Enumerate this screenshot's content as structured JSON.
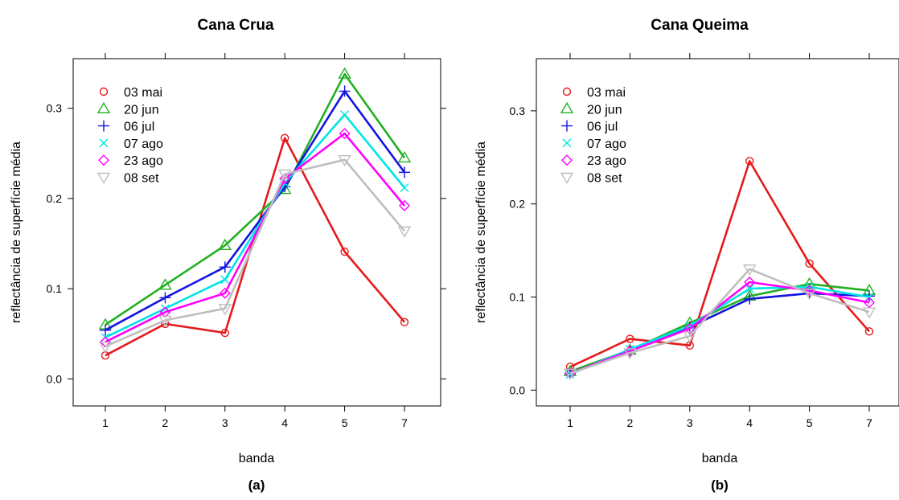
{
  "chart_data": [
    {
      "type": "line",
      "title": "Cana Crua",
      "caption": "(a)",
      "xlabel": "banda",
      "ylabel": "reflectância de superfície média",
      "categories": [
        "1",
        "2",
        "3",
        "4",
        "5",
        "7"
      ],
      "ylim": [
        -0.03,
        0.355
      ],
      "yticks": [
        "0.0",
        "0.1",
        "0.2",
        "0.3"
      ],
      "legend_position": "top-left",
      "series": [
        {
          "name": "03 mai",
          "color": "#e41a1c",
          "marker": "circle",
          "values": [
            0.026,
            0.061,
            0.051,
            0.267,
            0.141,
            0.063
          ]
        },
        {
          "name": "20 jun",
          "color": "#22b022",
          "marker": "triangle",
          "values": [
            0.06,
            0.104,
            0.148,
            0.21,
            0.338,
            0.245
          ]
        },
        {
          "name": "06 jul",
          "color": "#1414e0",
          "marker": "plus",
          "values": [
            0.054,
            0.09,
            0.124,
            0.213,
            0.319,
            0.229
          ]
        },
        {
          "name": "07 ago",
          "color": "#00e5e5",
          "marker": "cross",
          "values": [
            0.046,
            0.078,
            0.11,
            0.217,
            0.293,
            0.212
          ]
        },
        {
          "name": "23 ago",
          "color": "#ff00ff",
          "marker": "diamond",
          "values": [
            0.041,
            0.074,
            0.095,
            0.222,
            0.272,
            0.192
          ]
        },
        {
          "name": "08 set",
          "color": "#bebebe",
          "marker": "invtriangle",
          "values": [
            0.036,
            0.065,
            0.078,
            0.227,
            0.243,
            0.164
          ]
        }
      ]
    },
    {
      "type": "line",
      "title": "Cana Queima",
      "caption": "(b)",
      "xlabel": "banda",
      "ylabel": "reflectância de superfície média",
      "categories": [
        "1",
        "2",
        "3",
        "4",
        "5",
        "7"
      ],
      "ylim": [
        -0.017,
        0.356
      ],
      "yticks": [
        "0.0",
        "0.1",
        "0.2",
        "0.3"
      ],
      "legend_position": "top-left",
      "series": [
        {
          "name": "03 mai",
          "color": "#e41a1c",
          "marker": "circle",
          "values": [
            0.025,
            0.055,
            0.048,
            0.246,
            0.136,
            0.063
          ]
        },
        {
          "name": "20 jun",
          "color": "#22b022",
          "marker": "triangle",
          "values": [
            0.02,
            0.043,
            0.072,
            0.101,
            0.114,
            0.107
          ]
        },
        {
          "name": "06 jul",
          "color": "#1414e0",
          "marker": "plus",
          "values": [
            0.018,
            0.042,
            0.068,
            0.098,
            0.104,
            0.101
          ]
        },
        {
          "name": "07 ago",
          "color": "#00e5e5",
          "marker": "cross",
          "values": [
            0.017,
            0.044,
            0.069,
            0.109,
            0.111,
            0.1
          ]
        },
        {
          "name": "23 ago",
          "color": "#ff00ff",
          "marker": "diamond",
          "values": [
            0.018,
            0.042,
            0.066,
            0.116,
            0.107,
            0.094
          ]
        },
        {
          "name": "08 set",
          "color": "#bebebe",
          "marker": "invtriangle",
          "values": [
            0.018,
            0.04,
            0.058,
            0.13,
            0.104,
            0.084
          ]
        }
      ]
    }
  ]
}
